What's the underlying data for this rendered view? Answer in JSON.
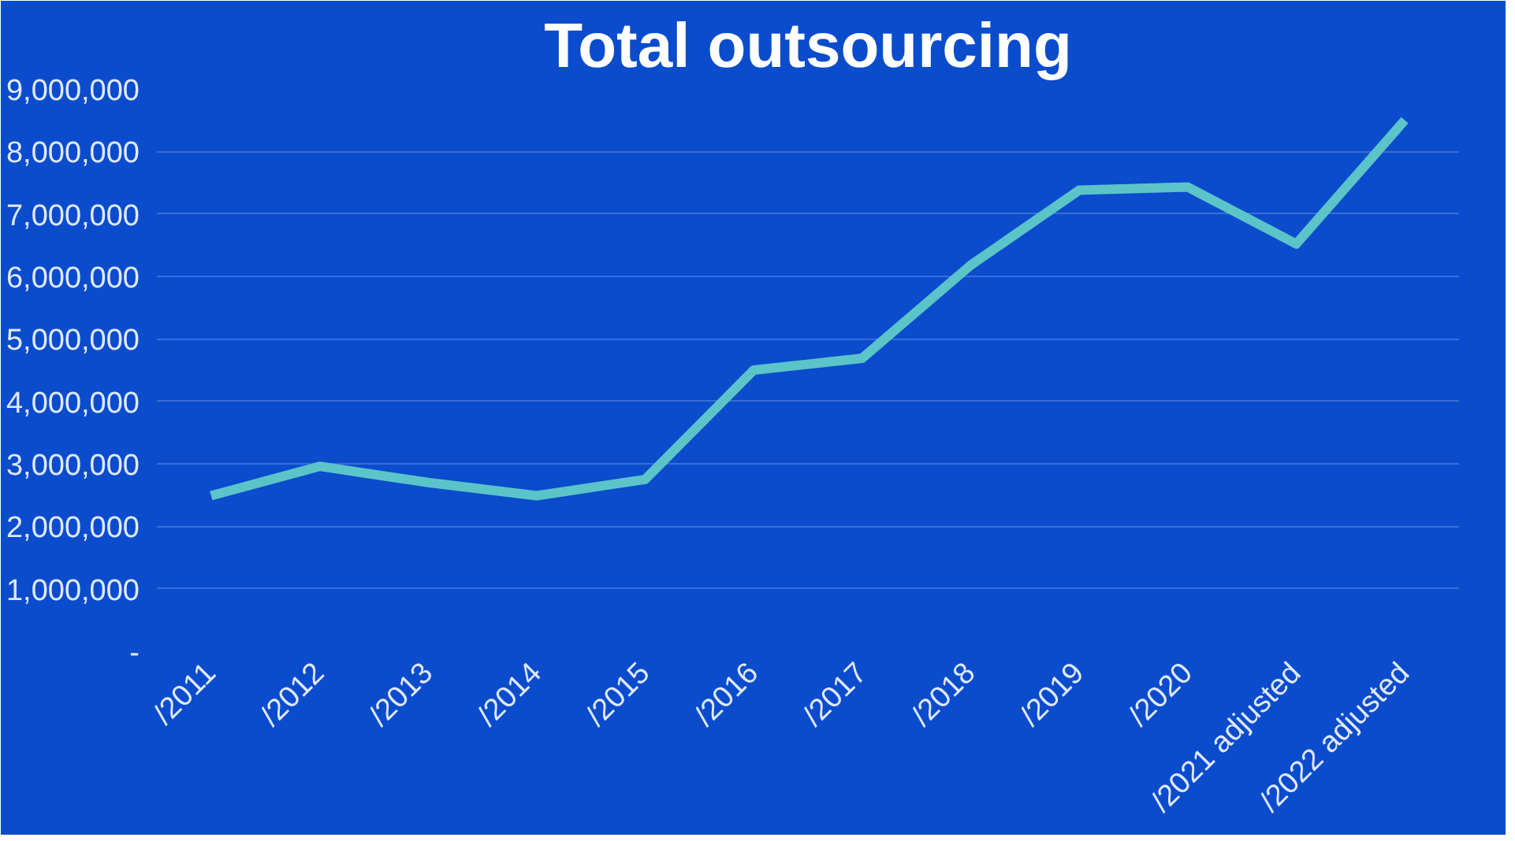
{
  "chart_data": {
    "type": "line",
    "title": "Total outsourcing",
    "categories": [
      "/2011",
      "/2012",
      "/2013",
      "/2014",
      "/2015",
      "/2016",
      "/2017",
      "/2018",
      "/2019",
      "/2020",
      "/2021 adjusted",
      "/2022 adjusted"
    ],
    "series": [
      {
        "color": "#5bc4c8",
        "values": [
          2490000,
          2960000,
          2700000,
          2490000,
          2750000,
          4500000,
          4690000,
          6180000,
          7380000,
          7430000,
          6520000,
          8500000
        ]
      }
    ],
    "ylim": [
      0,
      9000000
    ],
    "yticks": [
      {
        "value": 0,
        "label": "-"
      },
      {
        "value": 1000000,
        "label": "1,000,000"
      },
      {
        "value": 2000000,
        "label": "2,000,000"
      },
      {
        "value": 3000000,
        "label": "3,000,000"
      },
      {
        "value": 4000000,
        "label": "4,000,000"
      },
      {
        "value": 5000000,
        "label": "5,000,000"
      },
      {
        "value": 6000000,
        "label": "6,000,000"
      },
      {
        "value": 7000000,
        "label": "7,000,000"
      },
      {
        "value": 8000000,
        "label": "8,000,000"
      },
      {
        "value": 9000000,
        "label": "9,000,000"
      }
    ],
    "grid": "y",
    "marker": "none",
    "line_style": "solid"
  }
}
